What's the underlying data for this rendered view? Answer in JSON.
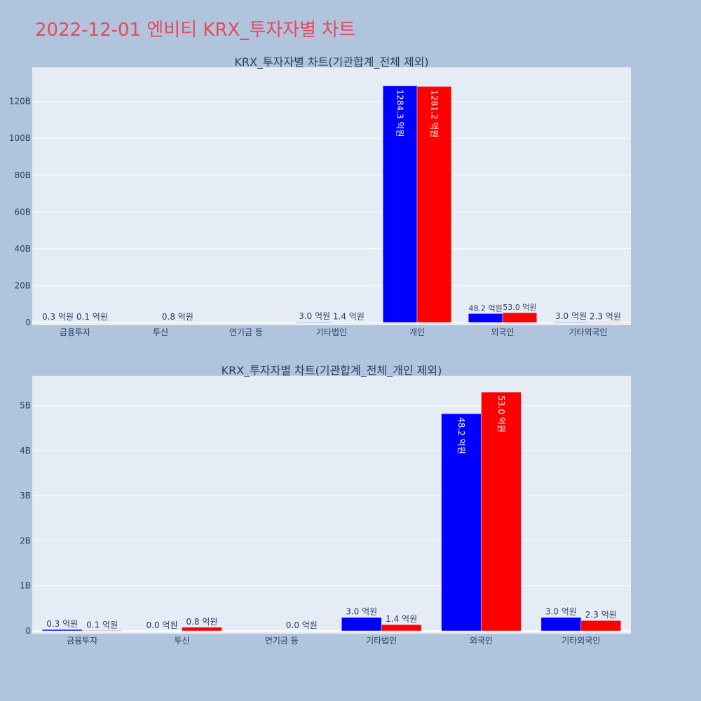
{
  "page": {
    "title": "2022-12-01 엔비티 KRX_투자자별 차트"
  },
  "chart_data": [
    {
      "type": "bar",
      "title": "KRX_투자자별 차트(기관합계_전체 제외)",
      "categories": [
        "금융투자",
        "투신",
        "연기금 등",
        "기타법인",
        "개인",
        "외국인",
        "기타외국인"
      ],
      "series": [
        {
          "color": "#0000ff",
          "values": [
            30000000,
            0,
            0,
            300000000,
            128430000000,
            4820000000,
            300000000
          ],
          "labels": [
            "0.3 억원",
            "",
            "",
            "3.0 억원",
            "1284.3 억원",
            "48.2 억원",
            "3.0 억원"
          ]
        },
        {
          "color": "#ff0000",
          "values": [
            10000000,
            80000000,
            0,
            140000000,
            128120000000,
            5300000000,
            230000000
          ],
          "labels": [
            "0.1 억원",
            "0.8 억원",
            "",
            "1.4 억원",
            "1281.2 억원",
            "53.0 억원",
            "2.3 억원"
          ]
        }
      ],
      "ylim": [
        0,
        137000000000
      ],
      "yticks": [
        0,
        20000000000,
        40000000000,
        60000000000,
        80000000000,
        100000000000,
        120000000000
      ],
      "ytick_labels": [
        "0",
        "20B",
        "40B",
        "60B",
        "80B",
        "100B",
        "120B"
      ],
      "grid": true
    },
    {
      "type": "bar",
      "title": "KRX_투자자별 차트(기관합계_전체_개인 제외)",
      "categories": [
        "금융투자",
        "투신",
        "연기금 등",
        "기타법인",
        "외국인",
        "기타외국인"
      ],
      "series": [
        {
          "color": "#0000ff",
          "values": [
            30000000,
            0,
            0,
            300000000,
            4820000000,
            300000000
          ],
          "labels": [
            "0.3 억원",
            "0.0 억원",
            "",
            "3.0 억원",
            "48.2 억원",
            "3.0 억원"
          ]
        },
        {
          "color": "#ff0000",
          "values": [
            10000000,
            80000000,
            0,
            140000000,
            5300000000,
            230000000
          ],
          "labels": [
            "0.1 억원",
            "0.8 억원",
            "0.0 억원",
            "1.4 억원",
            "53.0 억원",
            "2.3 억원"
          ]
        }
      ],
      "ylim": [
        0,
        5600000000
      ],
      "yticks": [
        0,
        1000000000,
        2000000000,
        3000000000,
        4000000000,
        5000000000
      ],
      "ytick_labels": [
        "0",
        "1B",
        "2B",
        "3B",
        "4B",
        "5B"
      ],
      "grid": true
    }
  ]
}
